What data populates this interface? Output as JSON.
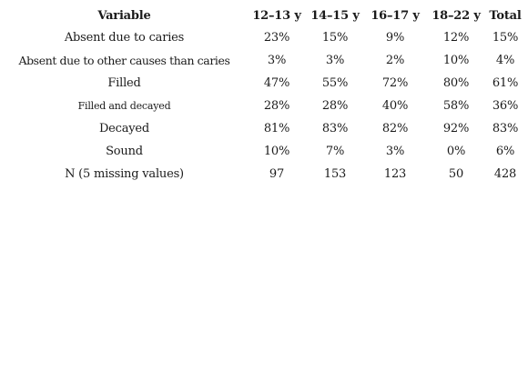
{
  "table": {
    "headers": [
      "Variable",
      "12–13 y",
      "14–15 y",
      "16–17 y",
      "18–22 y",
      "Total"
    ],
    "rows": [
      {
        "label": "Absent due to caries",
        "values": [
          "23%",
          "15%",
          "9%",
          "12%",
          "15%"
        ]
      },
      {
        "label": "Absent due to other causes than caries",
        "values": [
          "3%",
          "3%",
          "2%",
          "10%",
          "4%"
        ]
      },
      {
        "label": "Filled",
        "values": [
          "47%",
          "55%",
          "72%",
          "80%",
          "61%"
        ]
      },
      {
        "label": "Filled and decayed",
        "values": [
          "28%",
          "28%",
          "40%",
          "58%",
          "36%"
        ]
      },
      {
        "label": "Decayed",
        "values": [
          "81%",
          "83%",
          "82%",
          "92%",
          "83%"
        ]
      },
      {
        "label": "Sound",
        "values": [
          "10%",
          "7%",
          "3%",
          "0%",
          "6%"
        ]
      },
      {
        "label": "N (5 missing values)",
        "values": [
          "97",
          "153",
          "123",
          "50",
          "428"
        ]
      }
    ]
  }
}
